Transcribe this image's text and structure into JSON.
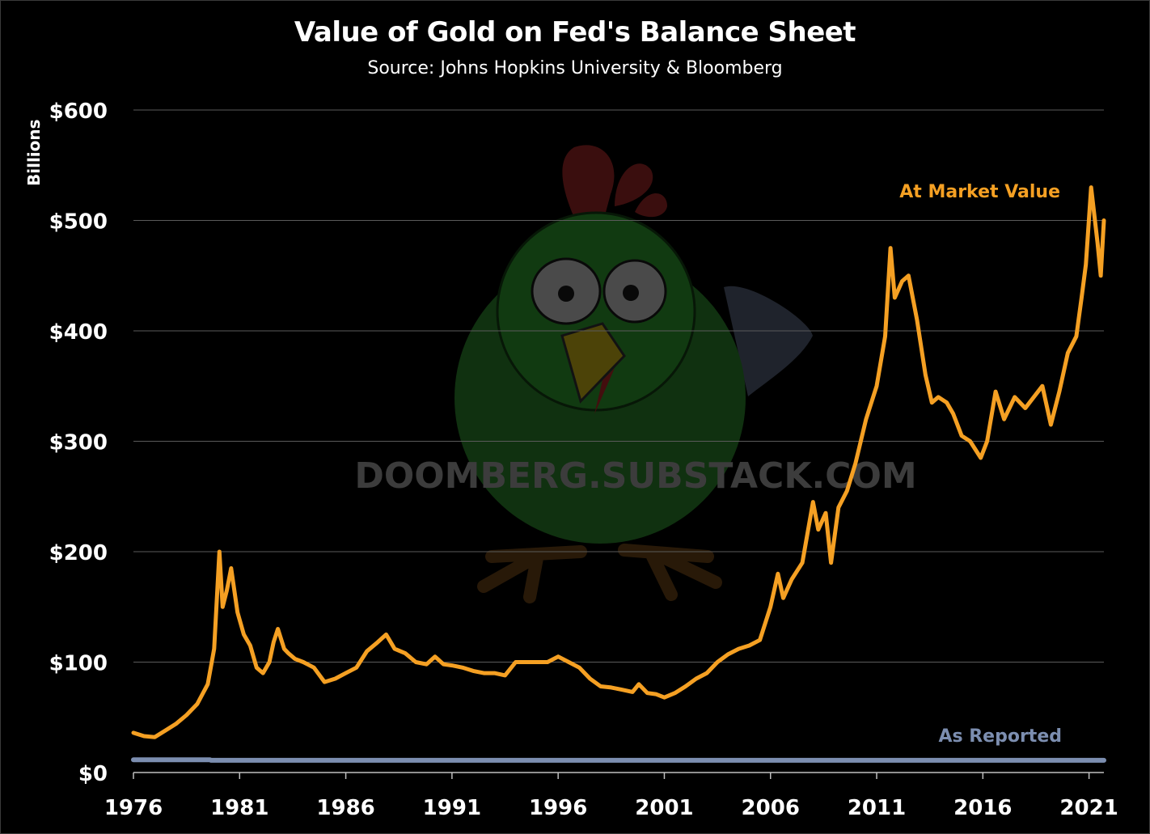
{
  "chart_data": {
    "type": "line",
    "title": "Value of Gold on Fed's Balance Sheet",
    "subtitle": "Source: Johns Hopkins University & Bloomberg",
    "xlabel": "",
    "ylabel": "Billions",
    "xlim": [
      1976,
      2021.7
    ],
    "ylim": [
      0,
      600
    ],
    "grid": "horizontal",
    "x_ticks": [
      1976,
      1981,
      1986,
      1991,
      1996,
      2001,
      2006,
      2011,
      2016,
      2021
    ],
    "x_tick_labels": [
      "1976",
      "1981",
      "1986",
      "1991",
      "1996",
      "2001",
      "2006",
      "2011",
      "2016",
      "2021"
    ],
    "y_ticks": [
      0,
      100,
      200,
      300,
      400,
      500,
      600
    ],
    "y_tick_labels": [
      "$0",
      "$100",
      "$200",
      "$300",
      "$400",
      "$500",
      "$600"
    ],
    "watermark": "DOOMBERG.SUBSTACK.COM",
    "series": [
      {
        "name": "At Market Value",
        "color": "#f5a023",
        "x": [
          1976.0,
          1976.5,
          1977.0,
          1977.5,
          1978.0,
          1978.5,
          1979.0,
          1979.5,
          1979.8,
          1980.05,
          1980.2,
          1980.4,
          1980.6,
          1980.9,
          1981.2,
          1981.5,
          1981.8,
          1982.1,
          1982.4,
          1982.6,
          1982.8,
          1983.1,
          1983.3,
          1983.6,
          1984.0,
          1984.5,
          1985.0,
          1985.5,
          1986.0,
          1986.5,
          1987.0,
          1987.5,
          1987.9,
          1988.3,
          1988.8,
          1989.3,
          1989.8,
          1990.2,
          1990.6,
          1991.0,
          1991.5,
          1992.0,
          1992.5,
          1993.0,
          1993.5,
          1994.0,
          1994.5,
          1995.0,
          1995.5,
          1996.0,
          1996.5,
          1997.0,
          1997.5,
          1998.0,
          1998.5,
          1999.0,
          1999.5,
          1999.8,
          2000.2,
          2000.6,
          2001.0,
          2001.5,
          2002.0,
          2002.5,
          2003.0,
          2003.5,
          2004.0,
          2004.5,
          2005.0,
          2005.5,
          2006.0,
          2006.35,
          2006.6,
          2007.0,
          2007.5,
          2008.0,
          2008.25,
          2008.6,
          2008.85,
          2009.2,
          2009.6,
          2010.0,
          2010.5,
          2011.0,
          2011.4,
          2011.65,
          2011.85,
          2012.2,
          2012.5,
          2012.9,
          2013.3,
          2013.6,
          2013.9,
          2014.3,
          2014.6,
          2015.0,
          2015.4,
          2015.9,
          2016.2,
          2016.6,
          2017.0,
          2017.5,
          2018.0,
          2018.4,
          2018.8,
          2019.2,
          2019.6,
          2020.0,
          2020.4,
          2020.65,
          2020.85,
          2021.1,
          2021.4,
          2021.55,
          2021.7
        ],
        "values": [
          36,
          33,
          32,
          38,
          44,
          52,
          62,
          80,
          112,
          200,
          150,
          165,
          185,
          145,
          125,
          115,
          95,
          90,
          100,
          118,
          130,
          112,
          108,
          103,
          100,
          95,
          82,
          85,
          90,
          95,
          110,
          118,
          125,
          112,
          108,
          100,
          98,
          105,
          98,
          97,
          95,
          92,
          90,
          90,
          88,
          100,
          100,
          100,
          100,
          105,
          100,
          95,
          85,
          78,
          77,
          75,
          73,
          80,
          72,
          71,
          68,
          72,
          78,
          85,
          90,
          100,
          107,
          112,
          115,
          120,
          150,
          180,
          158,
          175,
          190,
          245,
          220,
          235,
          190,
          240,
          255,
          280,
          320,
          350,
          395,
          475,
          430,
          445,
          450,
          410,
          360,
          335,
          340,
          335,
          325,
          305,
          300,
          285,
          300,
          345,
          320,
          340,
          330,
          340,
          350,
          315,
          345,
          380,
          395,
          430,
          460,
          530,
          480,
          450,
          500
        ]
      },
      {
        "name": "As Reported",
        "color": "#7c8eb0",
        "x": [
          1976.0,
          1979.6,
          1979.65,
          2021.7
        ],
        "values": [
          11.6,
          11.6,
          11.04,
          11.04
        ]
      }
    ]
  }
}
